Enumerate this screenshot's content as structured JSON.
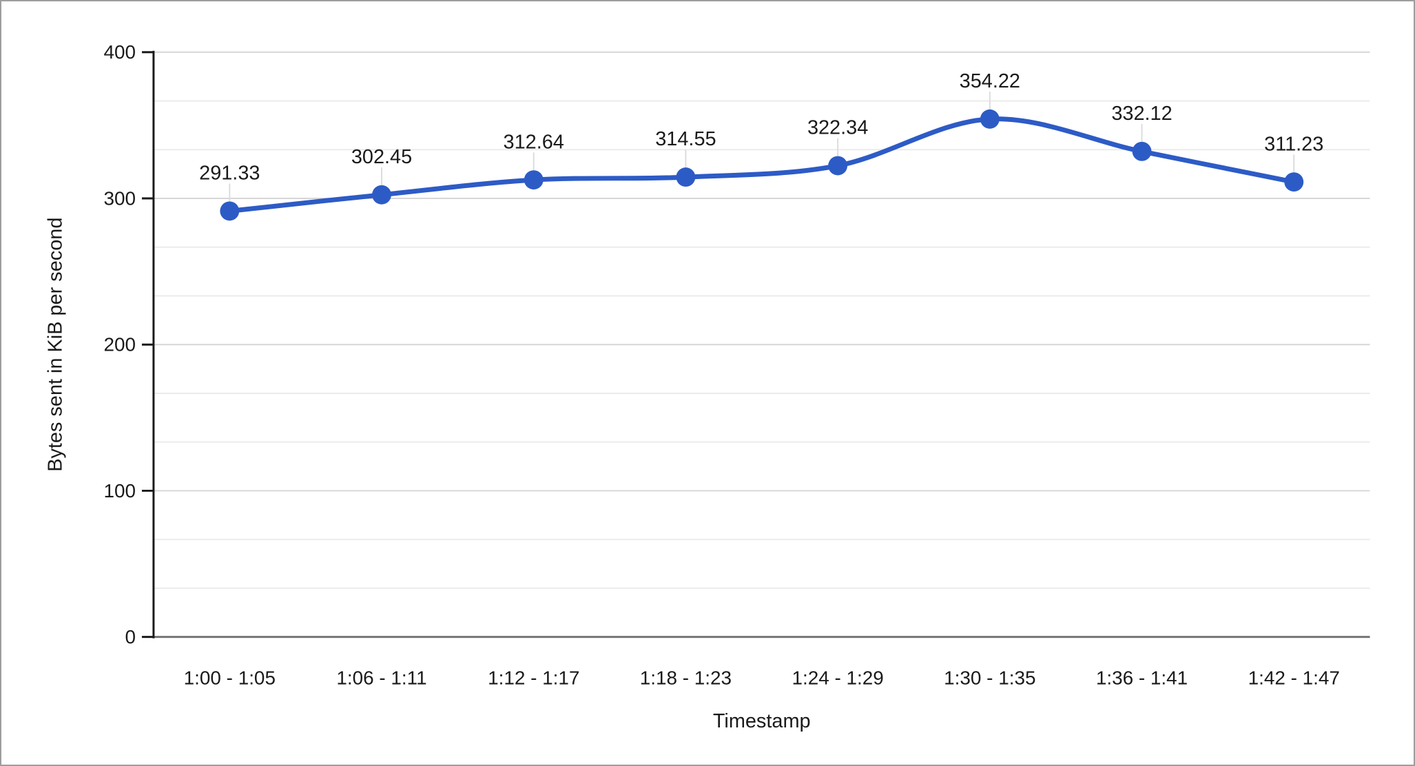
{
  "chart_data": {
    "type": "line",
    "title": "",
    "xlabel": "Timestamp",
    "ylabel": "Bytes sent in KiB per second",
    "categories": [
      "1:00 - 1:05",
      "1:06 - 1:11",
      "1:12 - 1:17",
      "1:18 - 1:23",
      "1:24 - 1:29",
      "1:30 - 1:35",
      "1:36 - 1:41",
      "1:42 - 1:47"
    ],
    "series": [
      {
        "values": [
          291.33,
          302.45,
          312.64,
          314.55,
          322.34,
          354.22,
          332.12,
          311.23
        ],
        "point_labels": [
          "291.33",
          "302.45",
          "312.64",
          "314.55",
          "322.34",
          "354.22",
          "332.12",
          "311.23"
        ]
      }
    ],
    "ylim": [
      0,
      400
    ],
    "yticks": [
      0,
      100,
      200,
      300,
      400
    ],
    "y_minor_divisions": 3,
    "grid": true,
    "legend": "none",
    "smooth": true,
    "colors": {
      "series": "#2d5bc6",
      "data_label": "#2d5bc6",
      "major_gridline": "#d6d6d6",
      "minor_gridline": "#ebebeb",
      "leader_line": "#dcdcdc",
      "baseline": "#757575",
      "axis_line": "#1a1a1a",
      "text": "#1a1a1a",
      "background": "#ffffff",
      "border": "#9e9e9e"
    }
  }
}
